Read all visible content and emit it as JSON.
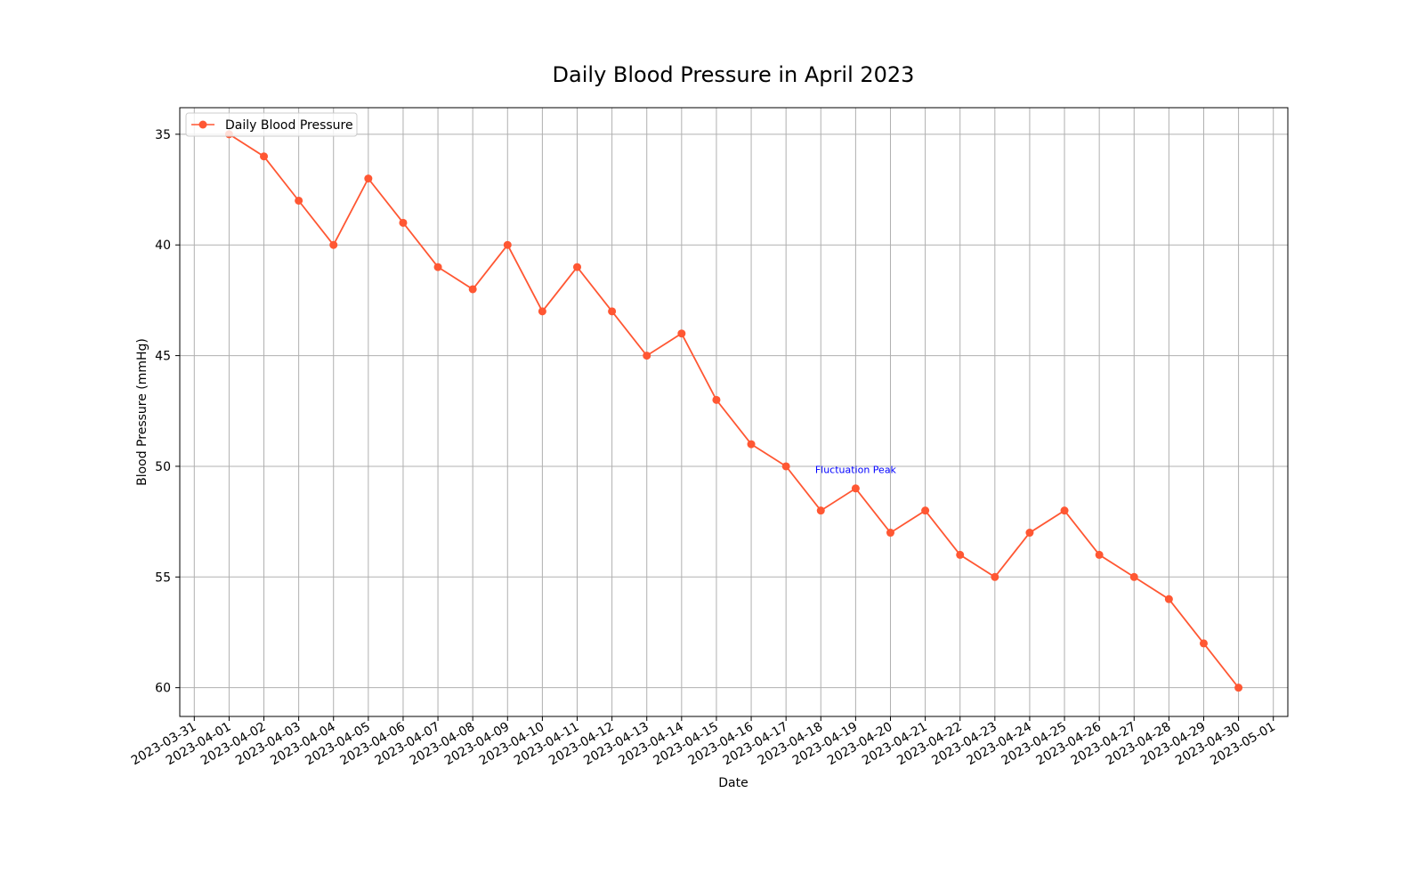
{
  "chart_data": {
    "type": "line",
    "title": "Daily Blood Pressure in April 2023",
    "xlabel": "Date",
    "ylabel": "Blood Pressure (mmHg)",
    "x_ticks": [
      "2023-03-31",
      "2023-04-01",
      "2023-04-02",
      "2023-04-03",
      "2023-04-04",
      "2023-04-05",
      "2023-04-06",
      "2023-04-07",
      "2023-04-08",
      "2023-04-09",
      "2023-04-10",
      "2023-04-11",
      "2023-04-12",
      "2023-04-13",
      "2023-04-14",
      "2023-04-15",
      "2023-04-16",
      "2023-04-17",
      "2023-04-18",
      "2023-04-19",
      "2023-04-20",
      "2023-04-21",
      "2023-04-22",
      "2023-04-23",
      "2023-04-24",
      "2023-04-25",
      "2023-04-26",
      "2023-04-27",
      "2023-04-28",
      "2023-04-29",
      "2023-04-30",
      "2023-05-01"
    ],
    "y_ticks": [
      35,
      40,
      45,
      50,
      55,
      60
    ],
    "y_inverted": true,
    "xlim": [
      "2023-03-30T14:00",
      "2023-05-01T10:00"
    ],
    "ylim": [
      33.8,
      61.3
    ],
    "grid": true,
    "legend_position": "top-left",
    "series": [
      {
        "name": "Daily Blood Pressure",
        "color": "#ff5733",
        "marker": "circle",
        "x": [
          "2023-04-01",
          "2023-04-02",
          "2023-04-03",
          "2023-04-04",
          "2023-04-05",
          "2023-04-06",
          "2023-04-07",
          "2023-04-08",
          "2023-04-09",
          "2023-04-10",
          "2023-04-11",
          "2023-04-12",
          "2023-04-13",
          "2023-04-14",
          "2023-04-15",
          "2023-04-16",
          "2023-04-17",
          "2023-04-18",
          "2023-04-19",
          "2023-04-20",
          "2023-04-21",
          "2023-04-22",
          "2023-04-23",
          "2023-04-24",
          "2023-04-25",
          "2023-04-26",
          "2023-04-27",
          "2023-04-28",
          "2023-04-29",
          "2023-04-30"
        ],
        "values": [
          35,
          36,
          38,
          40,
          37,
          39,
          41,
          42,
          40,
          43,
          41,
          43,
          45,
          44,
          47,
          49,
          50,
          52,
          51,
          53,
          52,
          54,
          55,
          53,
          52,
          54,
          55,
          56,
          58,
          60
        ]
      }
    ],
    "annotations": [
      {
        "text": "Fluctuation Peak",
        "x": "2023-04-19",
        "y": 50.3,
        "color": "#0000ff"
      }
    ]
  }
}
